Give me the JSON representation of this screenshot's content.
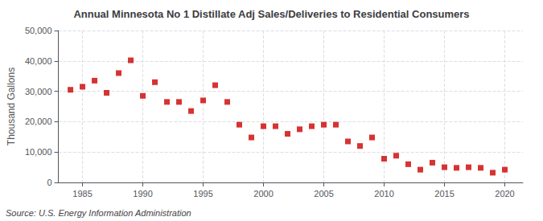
{
  "chart_data": {
    "type": "scatter",
    "title": "Annual Minnesota No 1 Distillate Adj Sales/Deliveries to Residential Consumers",
    "ylabel": "Thousand Gallons",
    "annotation": "Source: U.S. Energy Information Administration",
    "color": "#cc0000",
    "marker": "square",
    "grid": true,
    "xlim": [
      1983.0,
      2021.5
    ],
    "xticks": [
      1985,
      1990,
      1995,
      2000,
      2005,
      2010,
      2015,
      2020
    ],
    "ylim": [
      0,
      50000
    ],
    "yticks": [
      0,
      {
        "value": 10000,
        "label": "10,000"
      },
      {
        "value": 20000,
        "label": "20,000"
      },
      {
        "value": 30000,
        "label": "30,000"
      },
      {
        "value": 40000,
        "label": "40,000"
      },
      {
        "value": 50000,
        "label": "50,000"
      }
    ],
    "x": [
      1984,
      1985,
      1986,
      1987,
      1988,
      1989,
      1990,
      1991,
      1992,
      1993,
      1994,
      1995,
      1996,
      1997,
      1998,
      1999,
      2000,
      2001,
      2002,
      2003,
      2004,
      2005,
      2006,
      2007,
      2008,
      2009,
      2010,
      2011,
      2012,
      2013,
      2014,
      2015,
      2016,
      2017,
      2018,
      2019,
      2020
    ],
    "values": [
      30500,
      31500,
      33500,
      29500,
      36000,
      40200,
      28500,
      33000,
      26500,
      26500,
      23500,
      27000,
      32000,
      26500,
      19000,
      14800,
      18500,
      18500,
      16000,
      17500,
      18500,
      19000,
      19000,
      13500,
      12000,
      14800,
      7800,
      8800,
      6000,
      4200,
      6500,
      5000,
      4800,
      5000,
      4800,
      3200,
      4200
    ]
  }
}
